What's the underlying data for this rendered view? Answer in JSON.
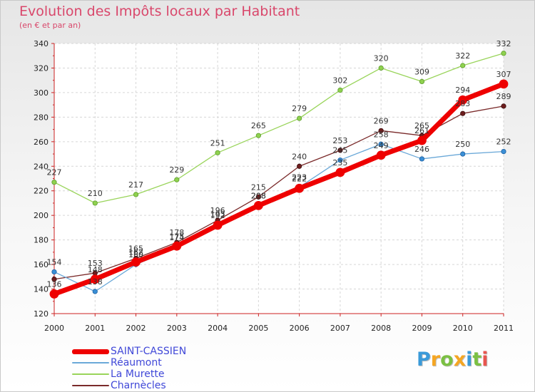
{
  "header": {
    "title": "Evolution des Impôts locaux par Habitant",
    "subtitle": "(en € et par an)"
  },
  "logo": {
    "letters": [
      {
        "char": "P",
        "color": "#3a9ad9"
      },
      {
        "char": "r",
        "color": "#f5a623"
      },
      {
        "char": "o",
        "color": "#7bc043"
      },
      {
        "char": "x",
        "color": "#f5a623"
      },
      {
        "char": "i",
        "color": "#3a9ad9"
      },
      {
        "char": "t",
        "color": "#7bc043"
      },
      {
        "char": "i",
        "color": "#e8554e"
      }
    ]
  },
  "chart_data": {
    "type": "line",
    "title": "Evolution des Impôts locaux par Habitant",
    "subtitle": "(en € et par an)",
    "xlabel": "",
    "ylabel": "",
    "categories": [
      "2000",
      "2001",
      "2002",
      "2003",
      "2004",
      "2005",
      "2006",
      "2007",
      "2008",
      "2009",
      "2010",
      "2011"
    ],
    "ylim": [
      120,
      340
    ],
    "yticks": [
      120,
      140,
      160,
      180,
      200,
      220,
      240,
      260,
      280,
      300,
      320,
      340
    ],
    "grid": true,
    "legend_position": "bottom-left",
    "series": [
      {
        "name": "SAINT-CASSIEN",
        "color": "#ee0000",
        "values": [
          136,
          148,
          162,
          175,
          192,
          208,
          222,
          235,
          249,
          261,
          294,
          307
        ],
        "labels_shown": [
          true,
          true,
          true,
          true,
          true,
          true,
          true,
          true,
          true,
          true,
          true,
          true
        ]
      },
      {
        "name": "Réaumont",
        "color": "#6aa8d8",
        "values": [
          154,
          138,
          160,
          174,
          193,
          208,
          223,
          245,
          258,
          246,
          250,
          252
        ],
        "labels_shown": [
          true,
          true,
          true,
          true,
          true,
          true,
          true,
          true,
          true,
          true,
          true,
          true
        ]
      },
      {
        "name": "La Murette",
        "color": "#99d45a",
        "values": [
          227,
          210,
          217,
          229,
          251,
          265,
          279,
          302,
          320,
          309,
          322,
          332
        ],
        "labels_shown": [
          true,
          true,
          true,
          true,
          true,
          true,
          true,
          true,
          true,
          true,
          true,
          true
        ]
      },
      {
        "name": "Charnècles",
        "color": "#7a2a2a",
        "values": [
          148,
          153,
          165,
          178,
          196,
          215,
          240,
          253,
          269,
          265,
          283,
          289
        ],
        "labels_shown": [
          false,
          true,
          true,
          true,
          true,
          true,
          true,
          true,
          true,
          true,
          true,
          true
        ]
      }
    ]
  }
}
